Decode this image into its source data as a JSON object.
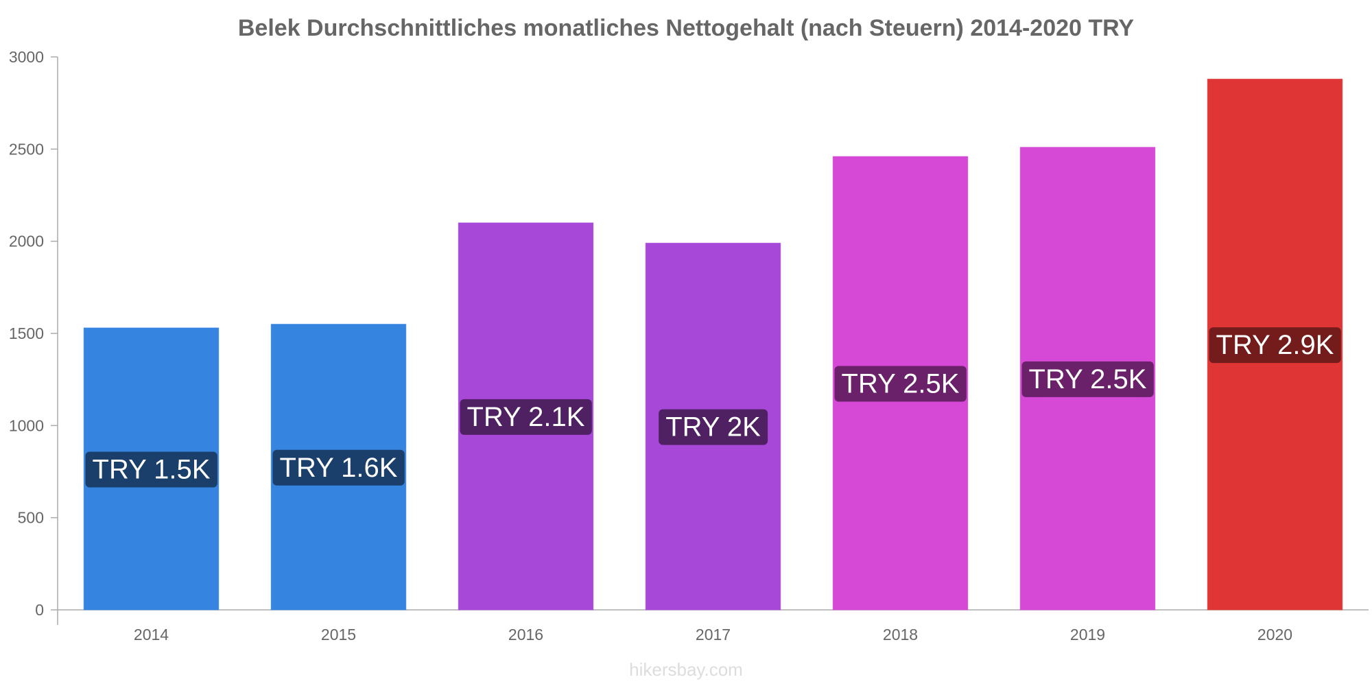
{
  "watermark": "hikersbay.com",
  "chart_data": {
    "type": "bar",
    "title": "Belek Durchschnittliches monatliches Nettogehalt (nach Steuern) 2014-2020 TRY",
    "xlabel": "",
    "ylabel": "",
    "categories": [
      "2014",
      "2015",
      "2016",
      "2017",
      "2018",
      "2019",
      "2020"
    ],
    "values": [
      1530,
      1550,
      2100,
      1990,
      2460,
      2510,
      2880
    ],
    "value_labels": [
      "TRY 1.5K",
      "TRY 1.6K",
      "TRY 2.1K",
      "TRY 2K",
      "TRY 2.5K",
      "TRY 2.5K",
      "TRY 2.9K"
    ],
    "bar_colors": [
      "#3584e0",
      "#3584e0",
      "#a748d9",
      "#a748d9",
      "#d648d6",
      "#d648d6",
      "#e03535"
    ],
    "label_bg_colors": [
      "#1b3f6b",
      "#1b3f6b",
      "#4f2163",
      "#4f2163",
      "#6a2169",
      "#6a2169",
      "#741b1b"
    ],
    "ylim": [
      0,
      3000
    ],
    "yticks": [
      0,
      500,
      1000,
      1500,
      2000,
      2500,
      3000
    ],
    "grid": false,
    "legend": "none"
  }
}
